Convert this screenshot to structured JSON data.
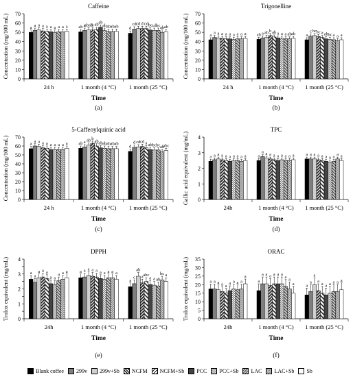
{
  "legend_entries": [
    "Blank coffee",
    "299v",
    "299v+Sb",
    "NCFM",
    "NCFM+Sb",
    "PCC",
    "PCC+Sb",
    "LAC",
    "LAC+Sb",
    "Sb"
  ],
  "series_patterns": [
    "solid-black",
    "grey-fill",
    "light-fill",
    "diag-dense",
    "diag-wide",
    "dark-grey",
    "checker",
    "hatch-grey",
    "crosshatch",
    "white"
  ],
  "series_colors": [
    "#000000",
    "#7f7f7f",
    "#d0d0d0",
    "#222222",
    "#222222",
    "#444444",
    "#999999",
    "#5a5a5a",
    "#bbbbbb",
    "#ffffff"
  ],
  "chart_data": [
    {
      "panel_letter": "(a)",
      "type": "bar",
      "title": "Caffeine",
      "ylabel": "Concentration (mg/100 mL)",
      "xlabel": "Time",
      "ylim": [
        0,
        70
      ],
      "yticks": [
        0,
        10,
        20,
        30,
        40,
        50,
        60,
        70
      ],
      "categories": [
        "24 h",
        "1 month (4 °C)",
        "1 month (25 °C)"
      ],
      "series": [
        {
          "name": "Blank coffee",
          "values": [
            50,
            50.5,
            49
          ]
        },
        {
          "name": "299v",
          "values": [
            52,
            52,
            53.5
          ]
        },
        {
          "name": "299v+Sb",
          "values": [
            52.5,
            52.5,
            54
          ]
        },
        {
          "name": "NCFM",
          "values": [
            51.5,
            52.5,
            54
          ]
        },
        {
          "name": "NCFM+Sb",
          "values": [
            51,
            53,
            54
          ]
        },
        {
          "name": "PCC",
          "values": [
            50.5,
            55.5,
            52.5
          ]
        },
        {
          "name": "PCC+Sb",
          "values": [
            50,
            52,
            52
          ]
        },
        {
          "name": "LAC",
          "values": [
            50.5,
            51,
            52
          ]
        },
        {
          "name": "LAC+Sb",
          "values": [
            50.5,
            51,
            50
          ]
        },
        {
          "name": "Sb",
          "values": [
            51,
            51,
            50.5
          ]
        }
      ],
      "errors": [
        2.5,
        2.5,
        2.5
      ],
      "letters": [
        [
          "a",
          "a",
          "a",
          "a",
          "a",
          "a",
          "a",
          "a",
          "a",
          "a"
        ],
        [
          "ab",
          "a",
          "abab",
          "b",
          "ab",
          "ab",
          "ab",
          "ab",
          "ab",
          "ab"
        ],
        [
          "d",
          "cd",
          "cd",
          "d",
          "cd",
          "bc",
          "cd",
          "bc",
          "ab",
          "ab"
        ]
      ]
    },
    {
      "panel_letter": "(b)",
      "type": "bar",
      "title": "Trigonelline",
      "ylabel": "Concentration (mg/100 mL)",
      "xlabel": "Time",
      "ylim": [
        0,
        70
      ],
      "yticks": [
        0,
        10,
        20,
        30,
        40,
        50,
        60,
        70
      ],
      "categories": [
        "24 h",
        "1 month (4 °C)",
        "1 month (25 °C)"
      ],
      "series": [
        {
          "name": "Blank coffee",
          "values": [
            42,
            42.5,
            42
          ]
        },
        {
          "name": "299v",
          "values": [
            44.5,
            44,
            46
          ]
        },
        {
          "name": "299v+Sb",
          "values": [
            44,
            44.5,
            46.5
          ]
        },
        {
          "name": "NCFM",
          "values": [
            43.5,
            46.5,
            45.5
          ]
        },
        {
          "name": "NCFM+Sb",
          "values": [
            43,
            45,
            44.5
          ]
        },
        {
          "name": "PCC",
          "values": [
            43,
            44,
            43
          ]
        },
        {
          "name": "PCC+Sb",
          "values": [
            42.5,
            43.5,
            42.5
          ]
        },
        {
          "name": "LAC",
          "values": [
            43,
            43,
            42
          ]
        },
        {
          "name": "LAC+Sb",
          "values": [
            43,
            43,
            41
          ]
        },
        {
          "name": "Sb",
          "values": [
            43.5,
            43.5,
            42
          ]
        }
      ],
      "errors": [
        2.2,
        2.2,
        2.2
      ],
      "letters": [
        [
          "a",
          "a",
          "a",
          "a",
          "a",
          "a",
          "a",
          "a",
          "a",
          "a"
        ],
        [
          "ab",
          "a",
          "ab",
          "b",
          "ab",
          "a",
          "a",
          "a",
          "ab",
          "ab"
        ],
        [
          "a",
          "c",
          "bc",
          "bc",
          "a",
          "ab",
          "bc",
          "a",
          "a",
          "a"
        ]
      ]
    },
    {
      "panel_letter": "(c)",
      "type": "bar",
      "title": "5-Caffeoylquinic acid",
      "ylabel": "Concentration (mg/100 mL)",
      "xlabel": "Time",
      "ylim": [
        0,
        70
      ],
      "yticks": [
        0,
        10,
        20,
        30,
        40,
        50,
        60,
        70
      ],
      "categories": [
        "24 h",
        "1 month (4 °C)",
        "1 month (25 °C)"
      ],
      "series": [
        {
          "name": "Blank coffee",
          "values": [
            57,
            57.5,
            54
          ]
        },
        {
          "name": "299v",
          "values": [
            60,
            59,
            58.5
          ]
        },
        {
          "name": "299v+Sb",
          "values": [
            59.5,
            61,
            59
          ]
        },
        {
          "name": "NCFM",
          "values": [
            58,
            63,
            59.5
          ]
        },
        {
          "name": "NCFM+Sb",
          "values": [
            57.5,
            60,
            58
          ]
        },
        {
          "name": "PCC",
          "values": [
            56,
            58,
            56
          ]
        },
        {
          "name": "PCC+Sb",
          "values": [
            56,
            57.5,
            55.5
          ]
        },
        {
          "name": "LAC",
          "values": [
            56,
            57,
            55.5
          ]
        },
        {
          "name": "LAC+Sb",
          "values": [
            56,
            57,
            53.5
          ]
        },
        {
          "name": "Sb",
          "values": [
            57.5,
            57,
            55
          ]
        }
      ],
      "errors": [
        2.5,
        2.5,
        2.5
      ],
      "letters": [
        [
          "a",
          "a",
          "a",
          "a",
          "a",
          "a",
          "a",
          "a",
          "a",
          "a"
        ],
        [
          "ab",
          "a",
          "ab",
          "b",
          "ab",
          "ab",
          "ab",
          "ab",
          "ab",
          "ab"
        ],
        [
          "d",
          "d",
          "cd",
          "cd",
          "a",
          "ab",
          "bc",
          "bc",
          "ab",
          "abc"
        ]
      ]
    },
    {
      "panel_letter": "(d)",
      "type": "bar",
      "title": "TPC",
      "ylabel": "Gallic acid equivalent (mg/mL)",
      "xlabel": "Time",
      "ylim": [
        0,
        4
      ],
      "yticks": [
        0,
        1,
        2,
        3,
        4
      ],
      "categories": [
        "24h",
        "1 month (4 °C)",
        "1 month (25 °C)"
      ],
      "series": [
        {
          "name": "Blank coffee",
          "values": [
            2.45,
            2.5,
            2.6
          ]
        },
        {
          "name": "299v",
          "values": [
            2.55,
            2.75,
            2.6
          ]
        },
        {
          "name": "299v+Sb",
          "values": [
            2.6,
            2.65,
            2.6
          ]
        },
        {
          "name": "NCFM",
          "values": [
            2.55,
            2.6,
            2.55
          ]
        },
        {
          "name": "NCFM+Sb",
          "values": [
            2.5,
            2.55,
            2.5
          ]
        },
        {
          "name": "PCC",
          "values": [
            2.45,
            2.5,
            2.45
          ]
        },
        {
          "name": "PCC+Sb",
          "values": [
            2.5,
            2.55,
            2.4
          ]
        },
        {
          "name": "LAC",
          "values": [
            2.5,
            2.5,
            2.45
          ]
        },
        {
          "name": "LAC+Sb",
          "values": [
            2.45,
            2.5,
            2.6
          ]
        },
        {
          "name": "Sb",
          "values": [
            2.5,
            2.55,
            2.5
          ]
        }
      ],
      "errors": [
        0.12,
        0.12,
        0.12
      ],
      "letters": [
        [
          "a",
          "a",
          "a",
          "a",
          "a",
          "a",
          "a",
          "a",
          "a",
          "a"
        ],
        [
          "a",
          "a",
          "a",
          "a",
          "a",
          "a",
          "a",
          "a",
          "a",
          "a"
        ],
        [
          "a",
          "a",
          "a",
          "a",
          "a",
          "a",
          "a",
          "a",
          "a",
          "a"
        ]
      ]
    },
    {
      "panel_letter": "(e)",
      "type": "bar",
      "title": "DPPH",
      "ylabel": "Trolox equivalent (mg/mL)",
      "xlabel": "Time",
      "ylim": [
        0,
        4
      ],
      "yticks": [
        0,
        0.5,
        1,
        1.5,
        2,
        2.5,
        3,
        3.5,
        4
      ],
      "ytick_labels": [
        "0",
        "",
        "1",
        "",
        "2",
        "",
        "3",
        "",
        "4"
      ],
      "categories": [
        "24h",
        "1 month (4 °C)",
        "1 month (25 °C)"
      ],
      "series": [
        {
          "name": "Blank coffee",
          "values": [
            2.65,
            2.75,
            2.15
          ]
        },
        {
          "name": "299v",
          "values": [
            2.45,
            2.8,
            2.35
          ]
        },
        {
          "name": "299v+Sb",
          "values": [
            2.75,
            2.9,
            2.85
          ]
        },
        {
          "name": "NCFM",
          "values": [
            2.8,
            2.85,
            2.4
          ]
        },
        {
          "name": "NCFM+Sb",
          "values": [
            2.7,
            2.8,
            2.5
          ]
        },
        {
          "name": "PCC",
          "values": [
            2.35,
            2.7,
            2.3
          ]
        },
        {
          "name": "PCC+Sb",
          "values": [
            2.3,
            2.65,
            2.25
          ]
        },
        {
          "name": "LAC",
          "values": [
            2.55,
            2.75,
            2.2
          ]
        },
        {
          "name": "LAC+Sb",
          "values": [
            2.65,
            2.75,
            2.6
          ]
        },
        {
          "name": "Sb",
          "values": [
            2.75,
            2.65,
            2.5
          ]
        }
      ],
      "errors": [
        0.25,
        0.25,
        0.25
      ],
      "letters": [
        [
          "a",
          "a",
          "a",
          "a",
          "a",
          "a",
          "a",
          "a",
          "a",
          "a"
        ],
        [
          "a",
          "a",
          "a",
          "a",
          "a",
          "a",
          "a",
          "a",
          "a",
          "a"
        ],
        [
          "a",
          "c",
          "ab",
          "a",
          "abc",
          "a",
          "a",
          "ab",
          "bc",
          "a"
        ]
      ]
    },
    {
      "panel_letter": "(f)",
      "type": "bar",
      "title": "ORAC",
      "ylabel": "Trolox equivalent (mg/mL)",
      "xlabel": "Time",
      "ylim": [
        0,
        35
      ],
      "yticks": [
        0,
        5,
        10,
        15,
        20,
        25,
        30,
        35
      ],
      "categories": [
        "24h",
        "1 month (4 °C)",
        "1 month (25 °C)"
      ],
      "series": [
        {
          "name": "Blank coffee",
          "values": [
            17.5,
            16.5,
            14
          ]
        },
        {
          "name": "299v",
          "values": [
            17.5,
            20.5,
            16
          ]
        },
        {
          "name": "299v+Sb",
          "values": [
            17,
            20.5,
            20
          ]
        },
        {
          "name": "NCFM",
          "values": [
            16,
            19.5,
            16.5
          ]
        },
        {
          "name": "NCFM+Sb",
          "values": [
            15,
            20.5,
            15
          ]
        },
        {
          "name": "PCC",
          "values": [
            16.5,
            20.5,
            14
          ]
        },
        {
          "name": "PCC+Sb",
          "values": [
            17.5,
            20.5,
            15
          ]
        },
        {
          "name": "LAC",
          "values": [
            17,
            19,
            16
          ]
        },
        {
          "name": "LAC+Sb",
          "values": [
            17.5,
            17.5,
            16
          ]
        },
        {
          "name": "Sb",
          "values": [
            20.5,
            15,
            17
          ]
        }
      ],
      "errors": [
        2.8,
        4.0,
        4.0
      ],
      "letters": [
        [
          "a",
          "a",
          "a",
          "a",
          "a",
          "a",
          "a",
          "a",
          "a",
          "a"
        ],
        [
          "a",
          "a",
          "a",
          "a",
          "a",
          "a",
          "a",
          "a",
          "a",
          "a"
        ],
        [
          "a",
          "a",
          "a",
          "a",
          "a",
          "a",
          "a",
          "a",
          "a",
          "a"
        ]
      ]
    }
  ]
}
